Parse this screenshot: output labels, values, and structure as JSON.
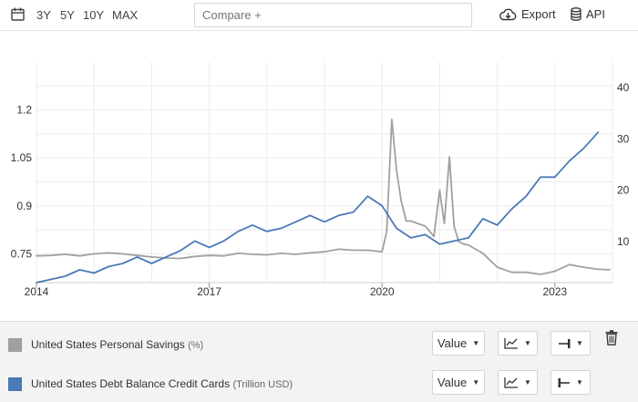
{
  "toolbar": {
    "ranges": [
      "3Y",
      "5Y",
      "10Y",
      "MAX"
    ],
    "compare_placeholder": "Compare +",
    "export_label": "Export",
    "api_label": "API",
    "calendar_icon": "calendar-icon",
    "export_icon": "cloud-download-icon",
    "api_icon": "database-icon"
  },
  "chart_data": {
    "type": "line",
    "title": "",
    "x_ticks": [
      "2014",
      "2017",
      "2020",
      "2023"
    ],
    "grid": true,
    "y_left": {
      "ticks": [
        "0.75",
        "0.9",
        "1.05",
        "1.2"
      ],
      "range": [
        0.66,
        1.35
      ]
    },
    "y_right": {
      "ticks": [
        "10",
        "20",
        "30",
        "40"
      ],
      "range": [
        2,
        45
      ]
    },
    "series": [
      {
        "name": "United States Debt Balance Credit Cards",
        "unit": "Trillion USD",
        "color": "#4a7ab7",
        "axis": "left",
        "x": [
          2014.0,
          2014.25,
          2014.5,
          2014.75,
          2015.0,
          2015.25,
          2015.5,
          2015.75,
          2016.0,
          2016.25,
          2016.5,
          2016.75,
          2017.0,
          2017.25,
          2017.5,
          2017.75,
          2018.0,
          2018.25,
          2018.5,
          2018.75,
          2019.0,
          2019.25,
          2019.5,
          2019.75,
          2020.0,
          2020.25,
          2020.5,
          2020.75,
          2021.0,
          2021.25,
          2021.5,
          2021.75,
          2022.0,
          2022.25,
          2022.5,
          2022.75,
          2023.0,
          2023.25,
          2023.5,
          2023.75
        ],
        "values": [
          0.66,
          0.67,
          0.68,
          0.7,
          0.69,
          0.71,
          0.72,
          0.74,
          0.72,
          0.74,
          0.76,
          0.79,
          0.77,
          0.79,
          0.82,
          0.84,
          0.82,
          0.83,
          0.85,
          0.87,
          0.85,
          0.87,
          0.88,
          0.93,
          0.9,
          0.83,
          0.8,
          0.81,
          0.78,
          0.79,
          0.8,
          0.86,
          0.84,
          0.89,
          0.93,
          0.99,
          0.99,
          1.04,
          1.08,
          1.13
        ]
      },
      {
        "name": "United States Personal Savings",
        "unit": "%",
        "color": "#a0a0a0",
        "axis": "right",
        "x": [
          2014.0,
          2014.25,
          2014.5,
          2014.75,
          2015.0,
          2015.25,
          2015.5,
          2015.75,
          2016.0,
          2016.25,
          2016.5,
          2016.75,
          2017.0,
          2017.25,
          2017.5,
          2017.75,
          2018.0,
          2018.25,
          2018.5,
          2018.75,
          2019.0,
          2019.25,
          2019.5,
          2019.75,
          2020.0,
          2020.08,
          2020.17,
          2020.25,
          2020.33,
          2020.42,
          2020.5,
          2020.75,
          2020.9,
          2021.0,
          2021.08,
          2021.17,
          2021.25,
          2021.33,
          2021.42,
          2021.5,
          2021.75,
          2022.0,
          2022.25,
          2022.5,
          2022.75,
          2023.0,
          2023.25,
          2023.5,
          2023.75,
          2023.95
        ],
        "values": [
          7.2,
          7.3,
          7.5,
          7.2,
          7.6,
          7.8,
          7.6,
          7.3,
          7.0,
          6.8,
          6.7,
          7.1,
          7.3,
          7.2,
          7.7,
          7.5,
          7.4,
          7.7,
          7.5,
          7.8,
          8.0,
          8.5,
          8.3,
          8.3,
          8.0,
          12.0,
          33.8,
          24.0,
          18.0,
          14.0,
          14.0,
          13.0,
          11.0,
          20.0,
          13.5,
          26.5,
          13.0,
          10.0,
          9.5,
          9.3,
          7.7,
          5.0,
          4.0,
          4.0,
          3.6,
          4.2,
          5.5,
          5.0,
          4.6,
          4.5
        ]
      }
    ]
  },
  "legend": {
    "rows": [
      {
        "label": "United States Personal Savings",
        "unit": "(%)",
        "color": "#a0a0a0",
        "value_label": "Value",
        "chart_icon": "line-chart-icon",
        "axis_icon": "axis-right-icon"
      },
      {
        "label": "United States Debt Balance Credit Cards",
        "unit": "(Trillion USD)",
        "color": "#4a7ab7",
        "value_label": "Value",
        "chart_icon": "line-chart-icon",
        "axis_icon": "axis-left-icon"
      }
    ],
    "delete_icon": "trash-icon"
  }
}
